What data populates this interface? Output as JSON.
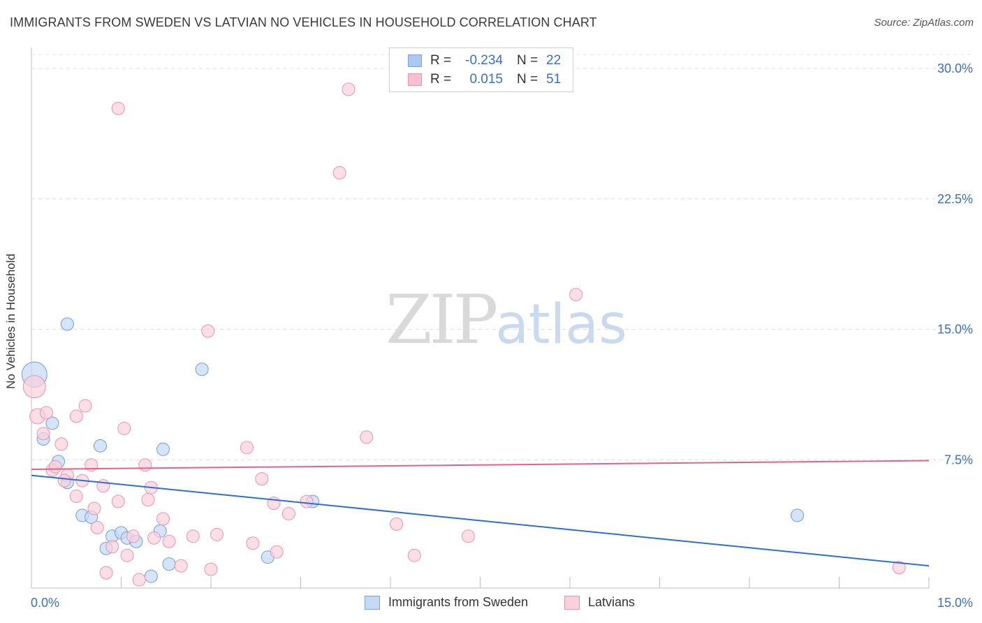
{
  "header": {
    "title": "IMMIGRANTS FROM SWEDEN VS LATVIAN NO VEHICLES IN HOUSEHOLD CORRELATION CHART",
    "source": "Source: ZipAtlas.com"
  },
  "watermark": {
    "zip": "ZIP",
    "atlas": "atlas"
  },
  "legend": {
    "rows": [
      {
        "r_label": "R =",
        "r_value": "-0.234",
        "n_label": "N =",
        "n_value": "22",
        "color": "#aac8f0",
        "border": "#7aa3de"
      },
      {
        "r_label": "R =",
        "r_value": "0.015",
        "n_label": "N =",
        "n_value": "51",
        "color": "#f7bfd0",
        "border": "#e993ae"
      }
    ]
  },
  "bottom_legend": [
    {
      "label": "Immigrants from Sweden",
      "color": "#c5d9f5",
      "border": "#7aa3de"
    },
    {
      "label": "Latvians",
      "color": "#f9d0dc",
      "border": "#e993ae"
    }
  ],
  "chart_data": {
    "type": "scatter",
    "title": "IMMIGRANTS FROM SWEDEN VS LATVIAN NO VEHICLES IN HOUSEHOLD CORRELATION CHART",
    "xlabel": "",
    "ylabel": "No Vehicles in Household",
    "xlim": [
      0,
      15
    ],
    "ylim": [
      0,
      30
    ],
    "x_tick_labels": [
      {
        "value": 0,
        "label": "0.0%"
      },
      {
        "value": 15,
        "label": "15.0%"
      }
    ],
    "y_tick_labels": [
      {
        "value": 7.5,
        "label": "7.5%"
      },
      {
        "value": 15,
        "label": "15.0%"
      },
      {
        "value": 22.5,
        "label": "22.5%"
      },
      {
        "value": 30,
        "label": "30.0%"
      }
    ],
    "grid": "horizontal-dashed",
    "series": [
      {
        "name": "Immigrants from Sweden",
        "color": "#c5d9f5",
        "stroke": "#6f9ddc",
        "trend_color": "#2e6fce",
        "trend": {
          "x": [
            0,
            15
          ],
          "y": [
            6.6,
            1.4
          ]
        },
        "points": [
          [
            0.05,
            12.4,
            18
          ],
          [
            0.35,
            9.6,
            9
          ],
          [
            0.2,
            8.7,
            9
          ],
          [
            0.45,
            7.4,
            9
          ],
          [
            0.6,
            15.3,
            9
          ],
          [
            0.6,
            6.2,
            9
          ],
          [
            1.15,
            8.3,
            9
          ],
          [
            0.85,
            4.3,
            9
          ],
          [
            1.0,
            4.2,
            9
          ],
          [
            1.35,
            3.1,
            9
          ],
          [
            1.5,
            3.3,
            9
          ],
          [
            1.6,
            3.0,
            9
          ],
          [
            1.75,
            2.8,
            9
          ],
          [
            1.25,
            2.4,
            9
          ],
          [
            2.0,
            0.8,
            9
          ],
          [
            2.15,
            3.4,
            9
          ],
          [
            2.2,
            8.1,
            9
          ],
          [
            2.3,
            1.5,
            9
          ],
          [
            2.85,
            12.7,
            9
          ],
          [
            3.95,
            1.9,
            9
          ],
          [
            4.7,
            5.1,
            9
          ],
          [
            12.8,
            4.3,
            9
          ]
        ]
      },
      {
        "name": "Latvians",
        "color": "#f9d0dc",
        "stroke": "#e993ae",
        "trend_color": "#e2628b",
        "trend": {
          "x": [
            0,
            15
          ],
          "y": [
            6.95,
            7.45
          ]
        },
        "points": [
          [
            0.05,
            11.7,
            16
          ],
          [
            0.1,
            10.0,
            11
          ],
          [
            0.25,
            10.2,
            9
          ],
          [
            0.2,
            9.0,
            9
          ],
          [
            0.5,
            8.4,
            9
          ],
          [
            0.35,
            6.9,
            9
          ],
          [
            0.4,
            7.1,
            9
          ],
          [
            0.6,
            6.6,
            9
          ],
          [
            0.55,
            6.3,
            9
          ],
          [
            0.75,
            5.4,
            9
          ],
          [
            0.75,
            10.0,
            9
          ],
          [
            0.9,
            10.6,
            9
          ],
          [
            0.85,
            6.3,
            9
          ],
          [
            1.0,
            7.2,
            9
          ],
          [
            1.05,
            4.7,
            9
          ],
          [
            1.1,
            3.6,
            9
          ],
          [
            1.2,
            6.0,
            9
          ],
          [
            1.35,
            2.5,
            9
          ],
          [
            1.45,
            5.1,
            9
          ],
          [
            1.55,
            9.3,
            9
          ],
          [
            1.25,
            1.0,
            9
          ],
          [
            1.6,
            2.0,
            9
          ],
          [
            1.7,
            3.1,
            9
          ],
          [
            1.8,
            0.6,
            9
          ],
          [
            1.9,
            7.2,
            9
          ],
          [
            1.95,
            5.2,
            9
          ],
          [
            2.0,
            5.9,
            9
          ],
          [
            2.05,
            3.0,
            9
          ],
          [
            2.2,
            4.1,
            9
          ],
          [
            2.3,
            2.8,
            9
          ],
          [
            2.5,
            1.4,
            9
          ],
          [
            2.7,
            3.1,
            9
          ],
          [
            2.95,
            14.9,
            9
          ],
          [
            3.0,
            1.2,
            9
          ],
          [
            3.1,
            3.2,
            9
          ],
          [
            3.6,
            8.2,
            9
          ],
          [
            3.7,
            2.7,
            9
          ],
          [
            3.85,
            6.4,
            9
          ],
          [
            4.05,
            5.0,
            9
          ],
          [
            4.1,
            2.2,
            9
          ],
          [
            4.3,
            4.4,
            9
          ],
          [
            4.6,
            5.1,
            9
          ],
          [
            1.45,
            27.7,
            9
          ],
          [
            5.3,
            28.8,
            9
          ],
          [
            5.15,
            24.0,
            9
          ],
          [
            5.6,
            8.8,
            9
          ],
          [
            6.1,
            3.8,
            9
          ],
          [
            6.4,
            2.0,
            9
          ],
          [
            7.3,
            3.1,
            9
          ],
          [
            9.1,
            17.0,
            9
          ],
          [
            14.5,
            1.3,
            9
          ]
        ]
      }
    ]
  }
}
